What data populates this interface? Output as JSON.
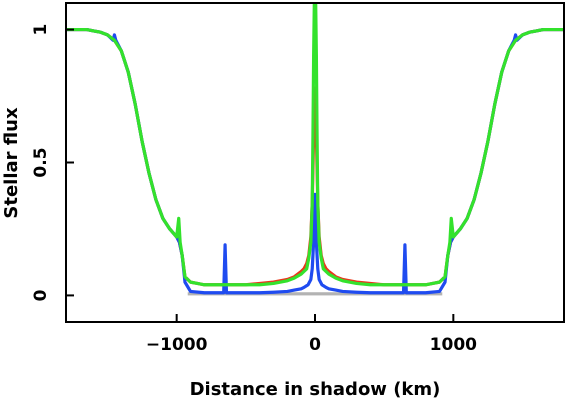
{
  "chart_data": {
    "type": "line",
    "title": "",
    "xlabel": "Distance in shadow (km)",
    "ylabel": "Stellar flux",
    "xlim": [
      -1800,
      1800
    ],
    "ylim": [
      -0.1,
      1.1
    ],
    "xticks": [
      -1000,
      0,
      1000
    ],
    "xtick_labels": [
      "−1000",
      "0",
      "1000"
    ],
    "yticks": [
      0,
      0.5,
      1
    ],
    "ytick_labels": [
      "0",
      "0.5",
      "1"
    ],
    "grid": false,
    "legend": "none",
    "shadow_band": {
      "x": [
        -920,
        920
      ],
      "y": [
        0,
        0.012
      ],
      "color": "#b3b3b3"
    },
    "series": [
      {
        "color": "#e8371c",
        "x": [
          0,
          5,
          10,
          20,
          30,
          45,
          60,
          80,
          100,
          150,
          200,
          300,
          400,
          500,
          600,
          700,
          800,
          850,
          900,
          940,
          960,
          980,
          1000,
          1050,
          1100,
          1150,
          1200,
          1250,
          1300,
          1350,
          1400,
          1450,
          1500,
          1550,
          1600,
          1650,
          1700,
          1800
        ],
        "y": [
          0.78,
          0.75,
          0.6,
          0.35,
          0.22,
          0.15,
          0.12,
          0.1,
          0.09,
          0.07,
          0.06,
          0.05,
          0.045,
          0.04,
          0.04,
          0.04,
          0.04,
          0.045,
          0.05,
          0.07,
          0.15,
          0.2,
          0.22,
          0.25,
          0.29,
          0.36,
          0.46,
          0.58,
          0.72,
          0.84,
          0.92,
          0.96,
          0.98,
          0.99,
          0.995,
          1.0,
          1.0,
          1.0
        ]
      },
      {
        "color": "#1f4bf0",
        "x": [
          0,
          5,
          10,
          20,
          30,
          50,
          80,
          100,
          150,
          200,
          300,
          400,
          500,
          600,
          640,
          650,
          660,
          700,
          800,
          900,
          940,
          960,
          980,
          1000,
          1050,
          1100,
          1150,
          1200,
          1250,
          1300,
          1350,
          1400,
          1440,
          1450,
          1460,
          1500,
          1550,
          1600,
          1650,
          1700,
          1800
        ],
        "y": [
          0.38,
          0.33,
          0.2,
          0.1,
          0.06,
          0.04,
          0.03,
          0.025,
          0.02,
          0.015,
          0.012,
          0.01,
          0.01,
          0.01,
          0.01,
          0.19,
          0.01,
          0.01,
          0.01,
          0.015,
          0.05,
          0.15,
          0.2,
          0.22,
          0.25,
          0.29,
          0.36,
          0.46,
          0.58,
          0.72,
          0.84,
          0.92,
          0.96,
          0.98,
          0.96,
          0.98,
          0.99,
          0.995,
          1.0,
          1.0,
          1.0
        ]
      },
      {
        "color": "#33e22c",
        "x": [
          0,
          5,
          10,
          15,
          20,
          30,
          45,
          60,
          80,
          100,
          150,
          200,
          300,
          400,
          500,
          600,
          700,
          800,
          850,
          900,
          940,
          960,
          975,
          985,
          1000,
          1050,
          1100,
          1150,
          1200,
          1250,
          1300,
          1350,
          1400,
          1450,
          1500,
          1550,
          1600,
          1650,
          1700,
          1800
        ],
        "y": [
          1.1,
          1.1,
          0.9,
          0.6,
          0.35,
          0.2,
          0.14,
          0.1,
          0.09,
          0.08,
          0.065,
          0.055,
          0.045,
          0.04,
          0.04,
          0.04,
          0.04,
          0.04,
          0.045,
          0.05,
          0.07,
          0.15,
          0.2,
          0.29,
          0.22,
          0.25,
          0.29,
          0.36,
          0.46,
          0.58,
          0.72,
          0.84,
          0.92,
          0.96,
          0.98,
          0.99,
          0.995,
          1.0,
          1.0,
          1.0
        ]
      }
    ]
  }
}
